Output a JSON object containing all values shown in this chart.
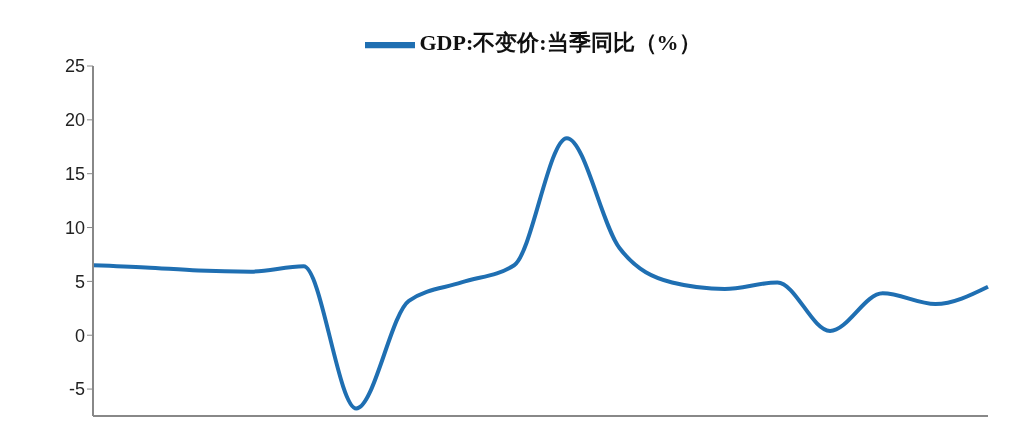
{
  "chart_data": {
    "type": "line",
    "categories": [
      null,
      null,
      null,
      null,
      null,
      null,
      null,
      null,
      null,
      null,
      null,
      null,
      null,
      null,
      null,
      null,
      null,
      null
    ],
    "series": [
      {
        "name": "GDP:不变价:当季同比（%）",
        "color": "#1f6fb2",
        "values": [
          6.5,
          6.3,
          6.0,
          5.9,
          6.4,
          -6.8,
          3.2,
          4.9,
          6.5,
          18.3,
          8.1,
          4.9,
          4.3,
          4.9,
          0.4,
          3.9,
          2.9,
          4.5
        ]
      }
    ],
    "ylim": [
      -7.5,
      25
    ],
    "yticks": [
      -5,
      0,
      5,
      10,
      15,
      20,
      25
    ],
    "legend": "top",
    "tick_labels": "y",
    "marker": "none",
    "line_style": "solid"
  }
}
